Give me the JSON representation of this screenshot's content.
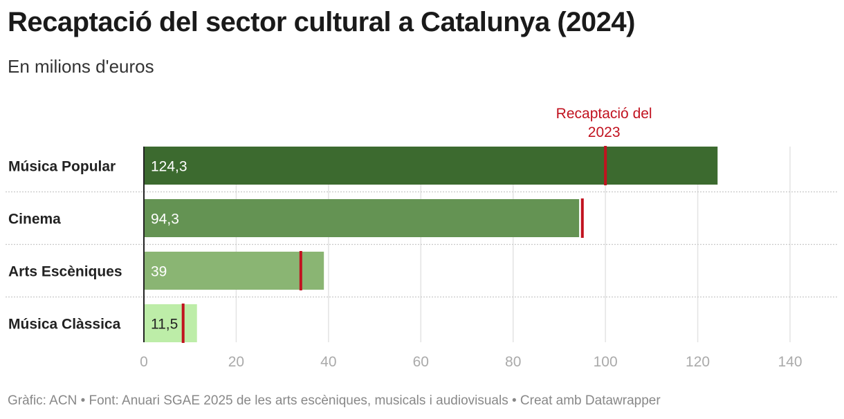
{
  "chart_data": {
    "type": "bar",
    "orientation": "horizontal",
    "title": "Recaptació del sector cultural a Catalunya (2024)",
    "subtitle": "En milions d'euros",
    "categories": [
      "Música Popular",
      "Cinema",
      "Arts Escèniques",
      "Música Clàssica"
    ],
    "values": [
      124.3,
      94.3,
      39,
      11.5
    ],
    "value_labels": [
      "124,3",
      "94,3",
      "39",
      "11,5"
    ],
    "bar_colors": [
      "#3c6a2f",
      "#649353",
      "#8ab573",
      "#bdeda8"
    ],
    "reference_series": {
      "label": "Recaptació del 2023",
      "values": [
        100,
        95,
        34,
        8.5
      ],
      "color": "#c1121f"
    },
    "xlim": [
      0,
      140
    ],
    "x_ticks": [
      0,
      20,
      40,
      60,
      80,
      100,
      120,
      140
    ],
    "grid": true,
    "footer": "Gràfic: ACN • Font: Anuari SGAE 2025 de les arts escèniques, musicals i audiovisuals • Creat amb Datawrapper"
  }
}
